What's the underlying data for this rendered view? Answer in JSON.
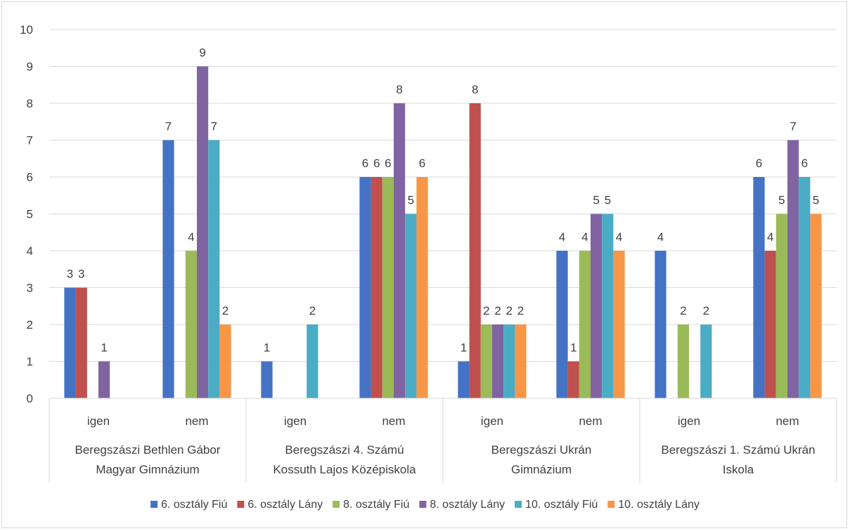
{
  "chart_data": {
    "type": "bar",
    "title": "",
    "xlabel": "",
    "ylabel": "",
    "ylim": [
      0,
      10
    ],
    "yticks": [
      0,
      1,
      2,
      3,
      4,
      5,
      6,
      7,
      8,
      9,
      10
    ],
    "grid": true,
    "legend_position": "bottom",
    "groups": [
      {
        "name": "Beregszászi Bethlen Gábor Magyar Gimnázium",
        "lines": [
          "Beregszászi Bethlen Gábor",
          "Magyar Gimnázium"
        ],
        "subcategories": [
          "igen",
          "nem"
        ]
      },
      {
        "name": "Beregszászi 4. Számú Kossuth Lajos Középiskola",
        "lines": [
          "Beregszászi 4. Számú",
          "Kossuth Lajos Középiskola"
        ],
        "subcategories": [
          "igen",
          "nem"
        ]
      },
      {
        "name": "Beregszászi Ukrán Gimnázium",
        "lines": [
          "Beregszászi Ukrán",
          "Gimnázium"
        ],
        "subcategories": [
          "igen",
          "nem"
        ]
      },
      {
        "name": "Beregszászi 1. Számú Ukrán Iskola",
        "lines": [
          "Beregszászi 1. Számú Ukrán",
          "Iskola"
        ],
        "subcategories": [
          "igen",
          "nem"
        ]
      }
    ],
    "series": [
      {
        "name": "6. osztály Fiú",
        "color": "#4472c4",
        "values": [
          3,
          7,
          1,
          6,
          1,
          4,
          4,
          6
        ]
      },
      {
        "name": "6. osztály Lány",
        "color": "#c0504d",
        "values": [
          3,
          null,
          null,
          6,
          8,
          1,
          null,
          4
        ]
      },
      {
        "name": "8. osztály Fiú",
        "color": "#9bbb59",
        "values": [
          null,
          4,
          null,
          6,
          2,
          4,
          2,
          5
        ]
      },
      {
        "name": "8. osztály  Lány",
        "color": "#8064a2",
        "values": [
          1,
          9,
          null,
          8,
          2,
          5,
          null,
          7
        ]
      },
      {
        "name": "10. osztály Fiú",
        "color": "#4bacc6",
        "values": [
          null,
          7,
          2,
          5,
          2,
          5,
          2,
          6
        ]
      },
      {
        "name": "10. osztály Lány",
        "color": "#f79646",
        "values": [
          null,
          2,
          null,
          6,
          2,
          4,
          null,
          5
        ]
      }
    ]
  }
}
